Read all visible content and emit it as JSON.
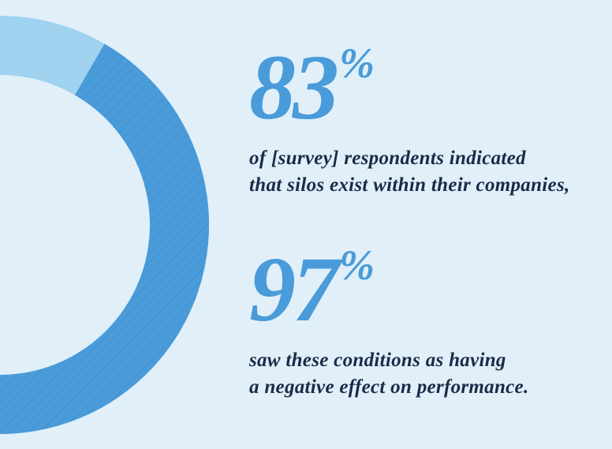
{
  "stats": [
    {
      "value": 83,
      "unit": "%",
      "caption": [
        "of [survey] respondents indicated",
        "that silos exist within their companies,"
      ]
    },
    {
      "value": 97,
      "unit": "%",
      "caption": [
        "saw these conditions as having",
        "a negative effect on performance."
      ]
    }
  ],
  "donut": {
    "color": "#4a9bd9",
    "track_color": "#9ed2ee"
  }
}
